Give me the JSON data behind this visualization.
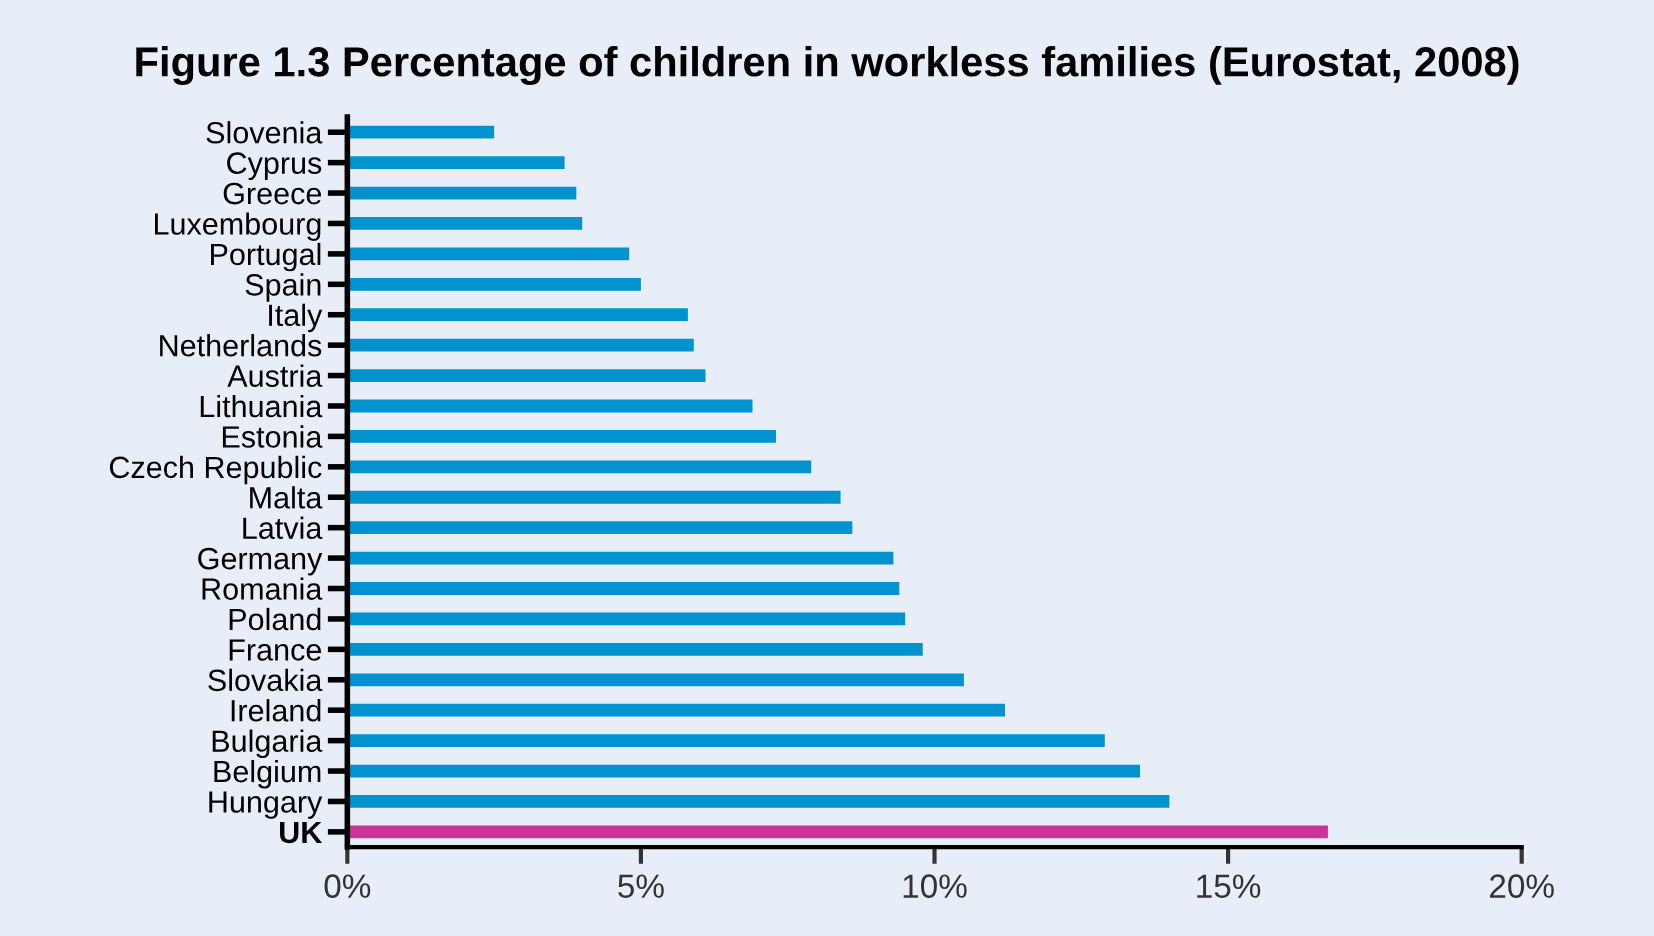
{
  "chart_data": {
    "type": "bar",
    "orientation": "horizontal",
    "title": "Figure 1.3 Percentage of children in workless families (Eurostat, 2008)",
    "categories": [
      "Slovenia",
      "Cyprus",
      "Greece",
      "Luxembourg",
      "Portugal",
      "Spain",
      "Italy",
      "Netherlands",
      "Austria",
      "Lithuania",
      "Estonia",
      "Czech Republic",
      "Malta",
      "Latvia",
      "Germany",
      "Romania",
      "Poland",
      "France",
      "Slovakia",
      "Ireland",
      "Bulgaria",
      "Belgium",
      "Hungary",
      "UK"
    ],
    "values": [
      2.5,
      3.7,
      3.9,
      4.0,
      4.8,
      5.0,
      5.8,
      5.9,
      6.1,
      6.9,
      7.3,
      7.9,
      8.4,
      8.6,
      9.3,
      9.4,
      9.5,
      9.8,
      10.5,
      11.2,
      12.9,
      13.5,
      14.0,
      16.7
    ],
    "colors": [
      "#0093d0",
      "#0093d0",
      "#0093d0",
      "#0093d0",
      "#0093d0",
      "#0093d0",
      "#0093d0",
      "#0093d0",
      "#0093d0",
      "#0093d0",
      "#0093d0",
      "#0093d0",
      "#0093d0",
      "#0093d0",
      "#0093d0",
      "#0093d0",
      "#0093d0",
      "#0093d0",
      "#0093d0",
      "#0093d0",
      "#0093d0",
      "#0093d0",
      "#0093d0",
      "#cc3399"
    ],
    "xlim": [
      0,
      20
    ],
    "xticks": [
      {
        "value": 0,
        "label": "0%"
      },
      {
        "value": 5,
        "label": "5%"
      },
      {
        "value": 10,
        "label": "10%"
      },
      {
        "value": 15,
        "label": "15%"
      },
      {
        "value": 20,
        "label": "20%"
      }
    ],
    "grid": false,
    "legend": false
  }
}
